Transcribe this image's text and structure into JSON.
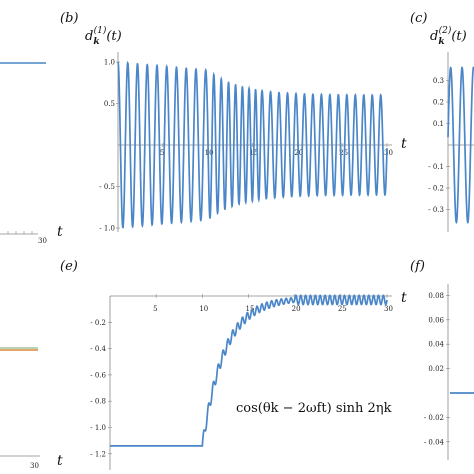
{
  "panel_labels": {
    "b": "(b)",
    "c": "(c)",
    "e": "(e)",
    "f": "(f)"
  },
  "axis_t": "t",
  "ylabel_b": {
    "base": "d",
    "sub": "k",
    "sup": "(1)",
    "arg": "(t)"
  },
  "ylabel_c": {
    "base": "d",
    "sub": "k",
    "sup": "(2)",
    "arg": "(t)"
  },
  "annotation_e": "cos(θk − 2ωft) sinh 2ηk",
  "colors": {
    "line": "#4a86c8",
    "axis": "#888888",
    "orange": "#d98a3a"
  },
  "ticks_left_top": [
    "30"
  ],
  "ticks_left_bottom": [
    "30"
  ],
  "ticks_b_x": [
    "5",
    "10",
    "15",
    "20",
    "25",
    "30"
  ],
  "ticks_b_y": [
    "1.0",
    "0.5",
    "- 0.5",
    "- 1.0"
  ],
  "ticks_c_y": [
    "0.3",
    "0.2",
    "0.1",
    "- 0.1",
    "- 0.2",
    "- 0.3"
  ],
  "ticks_e_x": [
    "5",
    "10",
    "15",
    "20",
    "25",
    "30"
  ],
  "ticks_e_y": [
    "- 0.2",
    "- 0.4",
    "- 0.6",
    "- 0.8",
    "- 1.0",
    "- 1.2"
  ],
  "ticks_f_y": [
    "0.08",
    "0.06",
    "0.04",
    "0.02",
    "- 0.02",
    "- 0.04"
  ],
  "chart_data": [
    {
      "type": "line",
      "panel": "(b)",
      "x_range": [
        0,
        30
      ],
      "ylim": [
        -1.05,
        1.05
      ],
      "x": [
        0,
        10,
        20,
        30
      ],
      "series": [
        {
          "values": [
            1.0,
            0.9,
            0.6,
            0.6
          ],
          "description_note": ""
        }
      ]
    },
    {
      "type": "line",
      "panel": "(e)",
      "x_range": [
        0,
        30
      ],
      "ylim": [
        -1.2,
        0
      ],
      "x": [
        0,
        10,
        12,
        15,
        20,
        30
      ],
      "series": [
        {
          "values": [
            -1.14,
            -1.14,
            -0.55,
            -0.22,
            -0.03,
            -0.03
          ]
        }
      ]
    }
  ]
}
